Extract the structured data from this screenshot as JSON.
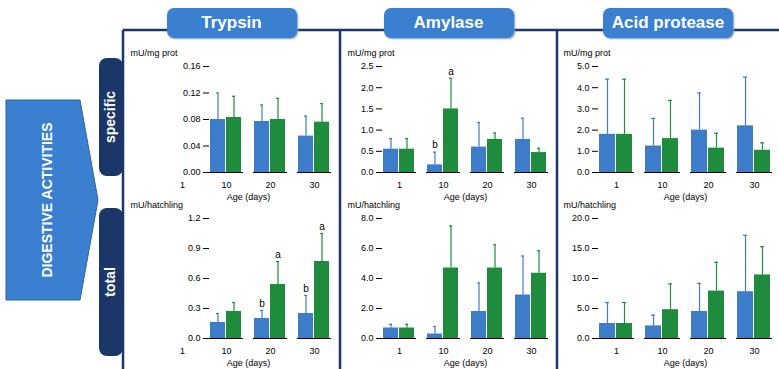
{
  "header": {
    "side_label": "DIGESTIVE ACTIVITIES",
    "rows": [
      "specific",
      "total"
    ],
    "columns": [
      "Trypsin",
      "Amylase",
      "Acid protease"
    ]
  },
  "chart_data": [
    {
      "type": "bar",
      "x_label": "Age (days)",
      "y_label": "mU/mg prot",
      "categories": [
        "1",
        "10",
        "20",
        "30"
      ],
      "ylim": [
        0,
        0.16
      ],
      "yticks": [
        {
          "value": 0,
          "label": "0.00"
        },
        {
          "value": 0.04,
          "label": "0.04"
        },
        {
          "value": 0.08,
          "label": "0.08"
        },
        {
          "value": 0.12,
          "label": "0.12"
        },
        {
          "value": 0.16,
          "label": "0.16"
        }
      ],
      "series": [
        {
          "color": "#3d7cc9",
          "values": [
            null,
            0.08,
            0.077,
            0.055
          ],
          "errors": [
            null,
            0.04,
            0.025,
            0.03
          ]
        },
        {
          "color": "#1e8c3c",
          "values": [
            null,
            0.083,
            0.08,
            0.076
          ],
          "errors": [
            null,
            0.032,
            0.032,
            0.028
          ]
        }
      ],
      "annotations": []
    },
    {
      "type": "bar",
      "x_label": "Age (days)",
      "y_label": "mU/mg prot",
      "categories": [
        "1",
        "10",
        "20",
        "30"
      ],
      "ylim": [
        0,
        2.5
      ],
      "yticks": [
        {
          "value": 0,
          "label": "0.0"
        },
        {
          "value": 0.5,
          "label": "0.5"
        },
        {
          "value": 1,
          "label": "1.0"
        },
        {
          "value": 1.5,
          "label": "1.5"
        },
        {
          "value": 2,
          "label": "2.0"
        },
        {
          "value": 2.5,
          "label": "2.5"
        }
      ],
      "series": [
        {
          "color": "#3d7cc9",
          "values": [
            0.55,
            0.18,
            0.6,
            0.78
          ],
          "errors": [
            0.25,
            0.3,
            0.58,
            0.5
          ]
        },
        {
          "color": "#1e8c3c",
          "values": [
            0.55,
            1.5,
            0.78,
            0.47
          ],
          "errors": [
            0.25,
            0.72,
            0.15,
            0.1
          ]
        }
      ],
      "annotations": [
        {
          "category": "10",
          "series": 0,
          "text": "b"
        },
        {
          "category": "10",
          "series": 1,
          "text": "a"
        }
      ]
    },
    {
      "type": "bar",
      "x_label": "Age (days)",
      "y_label": "mU/mg prot",
      "categories": [
        "1",
        "10",
        "20",
        "30"
      ],
      "ylim": [
        0,
        5
      ],
      "yticks": [
        {
          "value": 0,
          "label": "0.0"
        },
        {
          "value": 1,
          "label": "1.0"
        },
        {
          "value": 2,
          "label": "2.0"
        },
        {
          "value": 3,
          "label": "3.0"
        },
        {
          "value": 4,
          "label": "4.0"
        },
        {
          "value": 5,
          "label": "5.0"
        }
      ],
      "series": [
        {
          "color": "#3d7cc9",
          "values": [
            1.8,
            1.25,
            2.0,
            2.2
          ],
          "errors": [
            2.6,
            1.3,
            1.75,
            2.3
          ]
        },
        {
          "color": "#1e8c3c",
          "values": [
            1.8,
            1.6,
            1.15,
            1.05
          ],
          "errors": [
            2.6,
            1.8,
            0.7,
            0.35
          ]
        }
      ],
      "annotations": []
    },
    {
      "type": "bar",
      "x_label": "Age (days)",
      "y_label": "mU/hatchling",
      "categories": [
        "1",
        "10",
        "20",
        "30"
      ],
      "ylim": [
        0,
        1.2
      ],
      "yticks": [
        {
          "value": 0,
          "label": "0.0"
        },
        {
          "value": 0.3,
          "label": "0.3"
        },
        {
          "value": 0.6,
          "label": "0.6"
        },
        {
          "value": 0.9,
          "label": "0.9"
        },
        {
          "value": 1.2,
          "label": "1.2"
        }
      ],
      "series": [
        {
          "color": "#3d7cc9",
          "values": [
            null,
            0.16,
            0.2,
            0.25
          ],
          "errors": [
            null,
            0.09,
            0.08,
            0.18
          ]
        },
        {
          "color": "#1e8c3c",
          "values": [
            null,
            0.27,
            0.54,
            0.77
          ],
          "errors": [
            null,
            0.09,
            0.23,
            0.28
          ]
        }
      ],
      "annotations": [
        {
          "category": "20",
          "series": 0,
          "text": "b"
        },
        {
          "category": "20",
          "series": 1,
          "text": "a"
        },
        {
          "category": "30",
          "series": 0,
          "text": "b"
        },
        {
          "category": "30",
          "series": 1,
          "text": "a"
        }
      ]
    },
    {
      "type": "bar",
      "x_label": "Age (days)",
      "y_label": "mU/hatchling",
      "categories": [
        "1",
        "10",
        "20",
        "30"
      ],
      "ylim": [
        0,
        8
      ],
      "yticks": [
        {
          "value": 0,
          "label": "0.0"
        },
        {
          "value": 2,
          "label": "2.0"
        },
        {
          "value": 4,
          "label": "4.0"
        },
        {
          "value": 6,
          "label": "6.0"
        },
        {
          "value": 8,
          "label": "8.0"
        }
      ],
      "series": [
        {
          "color": "#3d7cc9",
          "values": [
            0.7,
            0.3,
            1.8,
            2.9
          ],
          "errors": [
            0.25,
            0.5,
            1.9,
            2.6
          ]
        },
        {
          "color": "#1e8c3c",
          "values": [
            0.7,
            4.7,
            4.7,
            4.35
          ],
          "errors": [
            0.25,
            2.8,
            1.55,
            1.5
          ]
        }
      ],
      "annotations": []
    },
    {
      "type": "bar",
      "x_label": "Age (days)",
      "y_label": "mU/hatchling",
      "categories": [
        "1",
        "10",
        "20",
        "30"
      ],
      "ylim": [
        0,
        20
      ],
      "yticks": [
        {
          "value": 0,
          "label": "0.0"
        },
        {
          "value": 5,
          "label": "5.0"
        },
        {
          "value": 10,
          "label": "10.0"
        },
        {
          "value": 15,
          "label": "15.0"
        },
        {
          "value": 20,
          "label": "20.0"
        }
      ],
      "series": [
        {
          "color": "#3d7cc9",
          "values": [
            2.5,
            2.1,
            4.5,
            7.8
          ],
          "errors": [
            3.5,
            1.8,
            4.7,
            9.4
          ]
        },
        {
          "color": "#1e8c3c",
          "values": [
            2.5,
            4.8,
            7.9,
            10.6
          ],
          "errors": [
            3.5,
            4.3,
            4.8,
            4.7
          ]
        }
      ],
      "annotations": []
    }
  ]
}
